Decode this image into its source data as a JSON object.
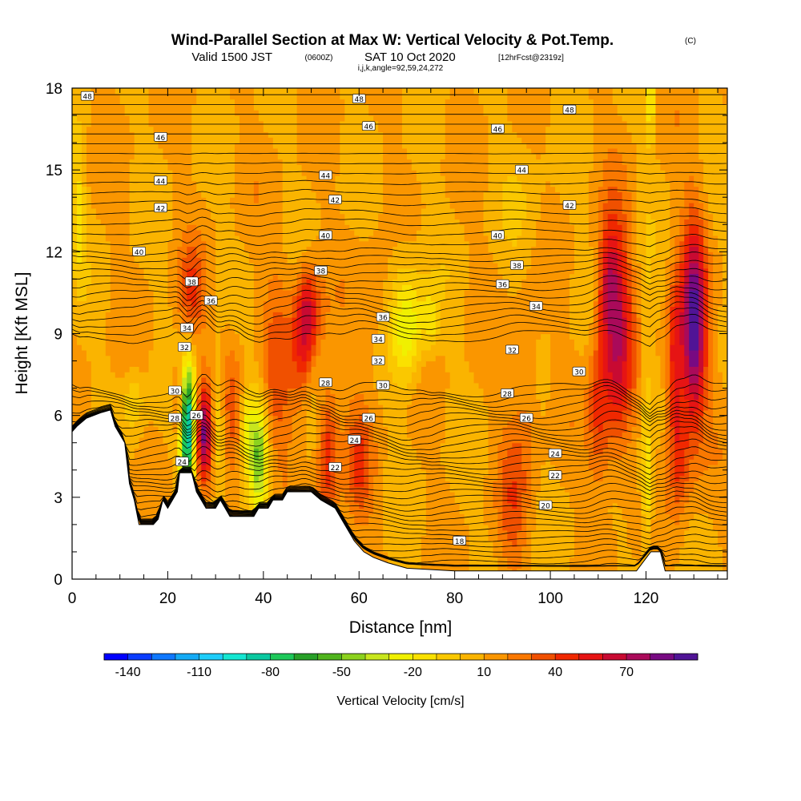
{
  "header": {
    "title": "Wind-Parallel Section at Max W: Vertical Velocity & Pot.Temp.",
    "copyright": "(C)",
    "valid_a": "Valid 1500 JST",
    "valid_zulu": "(0600Z)",
    "valid_b": "SAT 10 Oct 2020",
    "forecast": "[12hrFcst@2319z]",
    "indices": "i,j,k,angle=92,59,24,272"
  },
  "chart_data": {
    "type": "heatmap",
    "xlabel": "Distance [nm]",
    "ylabel": "Height [Kft MSL]",
    "xlim": [
      0,
      137
    ],
    "ylim": [
      0,
      18
    ],
    "x_ticks": [
      "0",
      "20",
      "40",
      "60",
      "80",
      "100",
      "120"
    ],
    "y_ticks": [
      "0",
      "3",
      "6",
      "9",
      "12",
      "15",
      "18"
    ],
    "colorbar": {
      "title": "Vertical Velocity [cm/s]",
      "tick_labels": [
        "-140",
        "-110",
        "-80",
        "-50",
        "-20",
        "10",
        "40",
        "70"
      ],
      "colors": [
        "#0000ff",
        "#0a3cff",
        "#0f78ff",
        "#14aaf5",
        "#1ecdfa",
        "#14e6d2",
        "#0ac8a0",
        "#1ec85a",
        "#28a028",
        "#50b41e",
        "#8cd21e",
        "#c8e61e",
        "#f0f000",
        "#fae100",
        "#fac800",
        "#fab400",
        "#fa9600",
        "#fa7800",
        "#f05000",
        "#f02800",
        "#e61414",
        "#c80a32",
        "#aa0a5a",
        "#780a82",
        "#501496"
      ],
      "range": [
        -150,
        100
      ]
    },
    "theta_labels": [
      {
        "text": "48",
        "x": 3.2,
        "y": 17.7
      },
      {
        "text": "48",
        "x": 60,
        "y": 17.6
      },
      {
        "text": "48",
        "x": 104,
        "y": 17.2
      },
      {
        "text": "46",
        "x": 18.5,
        "y": 16.2
      },
      {
        "text": "46",
        "x": 62,
        "y": 16.6
      },
      {
        "text": "46",
        "x": 89,
        "y": 16.5
      },
      {
        "text": "44",
        "x": 18.5,
        "y": 14.6
      },
      {
        "text": "44",
        "x": 53,
        "y": 14.8
      },
      {
        "text": "44",
        "x": 94,
        "y": 15.0
      },
      {
        "text": "42",
        "x": 18.5,
        "y": 13.6
      },
      {
        "text": "42",
        "x": 55,
        "y": 13.9
      },
      {
        "text": "42",
        "x": 104,
        "y": 13.7
      },
      {
        "text": "40",
        "x": 14,
        "y": 12.0
      },
      {
        "text": "40",
        "x": 53,
        "y": 12.6
      },
      {
        "text": "40",
        "x": 89,
        "y": 12.6
      },
      {
        "text": "38",
        "x": 25,
        "y": 10.9
      },
      {
        "text": "38",
        "x": 52,
        "y": 11.3
      },
      {
        "text": "38",
        "x": 93,
        "y": 11.5
      },
      {
        "text": "36",
        "x": 29,
        "y": 10.2
      },
      {
        "text": "36",
        "x": 65,
        "y": 9.6
      },
      {
        "text": "36",
        "x": 90,
        "y": 10.8
      },
      {
        "text": "34",
        "x": 24,
        "y": 9.2
      },
      {
        "text": "34",
        "x": 64,
        "y": 8.8
      },
      {
        "text": "34",
        "x": 97,
        "y": 10.0
      },
      {
        "text": "32",
        "x": 23.5,
        "y": 8.5
      },
      {
        "text": "32",
        "x": 64,
        "y": 8.0
      },
      {
        "text": "32",
        "x": 92,
        "y": 8.4
      },
      {
        "text": "30",
        "x": 21.5,
        "y": 6.9
      },
      {
        "text": "30",
        "x": 65,
        "y": 7.1
      },
      {
        "text": "30",
        "x": 106,
        "y": 7.6
      },
      {
        "text": "28",
        "x": 53,
        "y": 7.2
      },
      {
        "text": "28",
        "x": 91,
        "y": 6.8
      },
      {
        "text": "28",
        "x": 21.5,
        "y": 5.9
      },
      {
        "text": "26",
        "x": 26,
        "y": 6.0
      },
      {
        "text": "26",
        "x": 62,
        "y": 5.9
      },
      {
        "text": "26",
        "x": 95,
        "y": 5.9
      },
      {
        "text": "24",
        "x": 59,
        "y": 5.1
      },
      {
        "text": "24",
        "x": 101,
        "y": 4.6
      },
      {
        "text": "24",
        "x": 23,
        "y": 4.3
      },
      {
        "text": "22",
        "x": 55,
        "y": 4.1
      },
      {
        "text": "22",
        "x": 101,
        "y": 3.8
      },
      {
        "text": "20",
        "x": 99,
        "y": 2.7
      },
      {
        "text": "18",
        "x": 81,
        "y": 1.4
      }
    ]
  }
}
